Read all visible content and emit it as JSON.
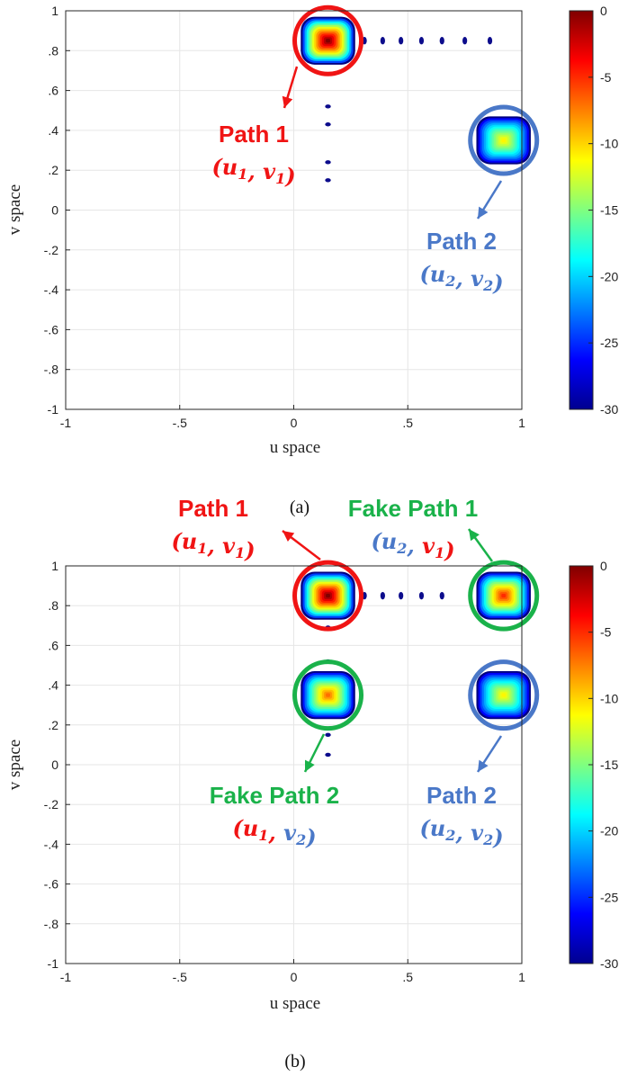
{
  "colors": {
    "red": "#f01414",
    "blue": "#4a78c8",
    "green": "#1ab24a",
    "grid": "#e6e6e6",
    "axis": "#262626",
    "sidelobe": "#0c0c8c"
  },
  "chart_data": [
    {
      "type": "heatmap",
      "panel": "a",
      "caption": "(a)",
      "xlabel": "u space",
      "ylabel": "v space",
      "xlim": [
        -1,
        1
      ],
      "ylim": [
        -1,
        1
      ],
      "xticks": [
        -1,
        -0.5,
        0,
        0.5,
        1
      ],
      "yticks": [
        -1,
        -0.8,
        -0.6,
        -0.4,
        -0.2,
        0,
        0.2,
        0.4,
        0.6,
        0.8,
        1
      ],
      "grid": true,
      "colorbar": {
        "min": -30,
        "max": 0,
        "ticks": [
          0,
          -5,
          -10,
          -15,
          -20,
          -25,
          -30
        ],
        "colormap": "jet"
      },
      "peaks": [
        {
          "u": 0.15,
          "v": 0.85,
          "peak_db": 0,
          "highlight": "red",
          "label": "Path 1",
          "coord": [
            "u",
            "1",
            "v",
            "1"
          ]
        },
        {
          "u": 0.92,
          "v": 0.35,
          "peak_db": -11,
          "highlight": "blue",
          "label": "Path 2",
          "coord": [
            "u",
            "2",
            "v",
            "2"
          ]
        }
      ],
      "sidelobes": [
        {
          "u": 0.31,
          "v": 0.85
        },
        {
          "u": 0.39,
          "v": 0.85
        },
        {
          "u": 0.47,
          "v": 0.85
        },
        {
          "u": 0.56,
          "v": 0.85
        },
        {
          "u": 0.65,
          "v": 0.85
        },
        {
          "u": 0.75,
          "v": 0.85
        },
        {
          "u": 0.86,
          "v": 0.85
        },
        {
          "u": 0.15,
          "v": 0.52
        },
        {
          "u": 0.15,
          "v": 0.43
        },
        {
          "u": 0.15,
          "v": 0.24
        },
        {
          "u": 0.15,
          "v": 0.15
        }
      ]
    },
    {
      "type": "heatmap",
      "panel": "b",
      "caption": "(b)",
      "xlabel": "u space",
      "ylabel": "v space",
      "xlim": [
        -1,
        1
      ],
      "ylim": [
        -1,
        1
      ],
      "xticks": [
        -1,
        -0.5,
        0,
        0.5,
        1
      ],
      "yticks": [
        -1,
        -0.8,
        -0.6,
        -0.4,
        -0.2,
        0,
        0.2,
        0.4,
        0.6,
        0.8,
        1
      ],
      "grid": true,
      "colorbar": {
        "min": -30,
        "max": 0,
        "ticks": [
          0,
          -5,
          -10,
          -15,
          -20,
          -25,
          -30
        ],
        "colormap": "jet"
      },
      "peaks": [
        {
          "u": 0.15,
          "v": 0.85,
          "peak_db": 0,
          "highlight": "red",
          "label": "Path 1",
          "coord": [
            "u",
            "1",
            "v",
            "1"
          ]
        },
        {
          "u": 0.92,
          "v": 0.85,
          "peak_db": -5,
          "highlight": "green",
          "label": "Fake Path 1",
          "coord": [
            "u",
            "2",
            "v",
            "1"
          ]
        },
        {
          "u": 0.15,
          "v": 0.35,
          "peak_db": -7,
          "highlight": "green",
          "label": "Fake Path 2",
          "coord": [
            "u",
            "1",
            "v",
            "2"
          ]
        },
        {
          "u": 0.92,
          "v": 0.35,
          "peak_db": -11,
          "highlight": "blue",
          "label": "Path 2",
          "coord": [
            "u",
            "2",
            "v",
            "2"
          ]
        }
      ],
      "sidelobes": [
        {
          "u": 0.31,
          "v": 0.85
        },
        {
          "u": 0.39,
          "v": 0.85
        },
        {
          "u": 0.47,
          "v": 0.85
        },
        {
          "u": 0.56,
          "v": 0.85
        },
        {
          "u": 0.65,
          "v": 0.85
        },
        {
          "u": 0.15,
          "v": 0.69
        },
        {
          "u": 0.15,
          "v": 0.52
        },
        {
          "u": 0.15,
          "v": 0.15
        },
        {
          "u": 0.15,
          "v": 0.05
        }
      ]
    }
  ]
}
